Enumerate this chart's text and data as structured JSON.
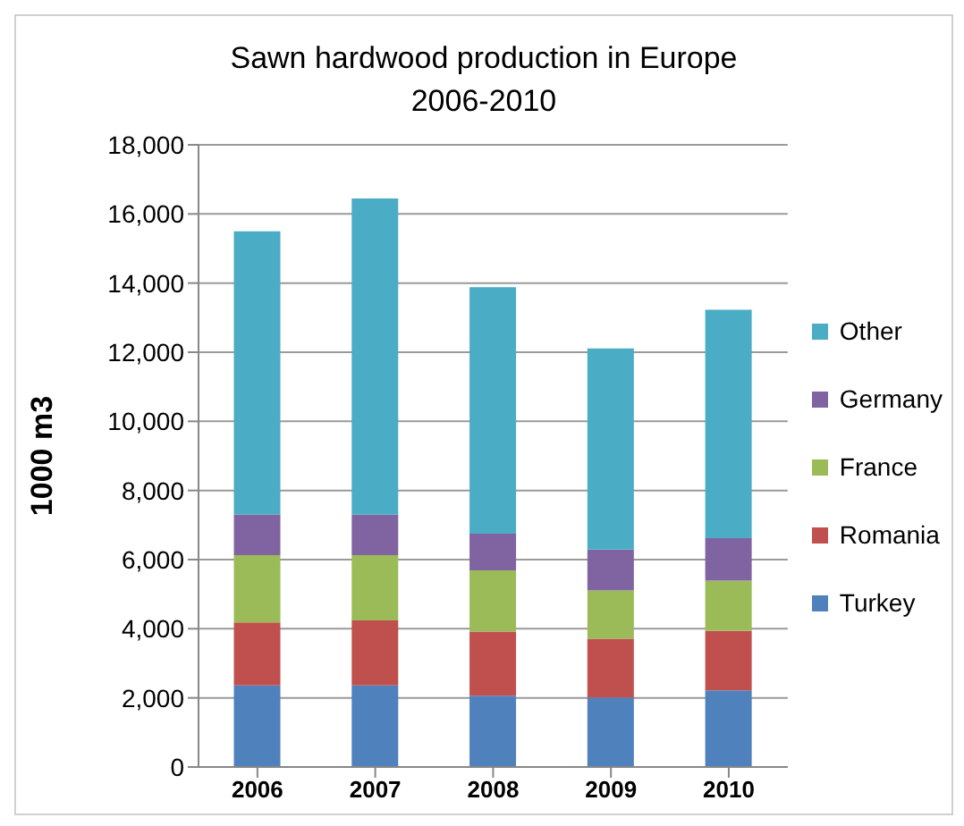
{
  "chart_data": {
    "type": "bar",
    "title": "Sawn hardwood production in Europe\n2006-2010",
    "ylabel": "1000 m3",
    "categories": [
      "2006",
      "2007",
      "2008",
      "2009",
      "2010"
    ],
    "stacked": true,
    "series": [
      {
        "name": "Turkey",
        "color": "#4f81bd",
        "values": [
          2360,
          2360,
          2060,
          2010,
          2220
        ]
      },
      {
        "name": "Romania",
        "color": "#c0504d",
        "values": [
          1820,
          1880,
          1860,
          1700,
          1720
        ]
      },
      {
        "name": "France",
        "color": "#9bbb59",
        "values": [
          1950,
          1890,
          1770,
          1400,
          1450
        ]
      },
      {
        "name": "Germany",
        "color": "#8064a2",
        "values": [
          1170,
          1170,
          1060,
          1180,
          1230
        ]
      },
      {
        "name": "Other",
        "color": "#4bacc6",
        "values": [
          8200,
          9150,
          7130,
          5820,
          6610
        ]
      }
    ],
    "ylim": [
      0,
      18000
    ],
    "yticks": [
      0,
      {
        "value": 2000,
        "label": "2,000"
      },
      {
        "value": 4000,
        "label": "4,000"
      },
      {
        "value": 6000,
        "label": "6,000"
      },
      {
        "value": 8000,
        "label": "8,000"
      },
      {
        "value": 10000,
        "label": "10,000"
      },
      {
        "value": 12000,
        "label": "12,000"
      },
      {
        "value": 14000,
        "label": "14,000"
      },
      {
        "value": 16000,
        "label": "16,000"
      },
      {
        "value": 18000,
        "label": "18,000"
      }
    ],
    "grid": "y",
    "legend": "right"
  }
}
